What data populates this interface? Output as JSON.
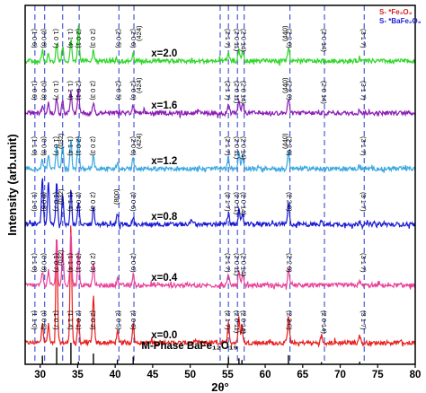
{
  "chart_data": {
    "type": "line",
    "xlabel": "2θ°",
    "ylabel": "Intensity (arb.unit)",
    "xlim": [
      28,
      80
    ],
    "x_ticks": [
      30,
      35,
      40,
      45,
      50,
      55,
      60,
      65,
      70,
      75,
      80
    ],
    "x_tick_labels": [
      "30",
      "35",
      "40",
      "45",
      "50",
      "55",
      "60",
      "65",
      "70",
      "75",
      "80"
    ],
    "legend": [
      {
        "text": "S- *Fe₃O₄",
        "color": "#d42020"
      },
      {
        "text": "S- *BaFe₂O₄",
        "color": "#2020d4"
      }
    ],
    "reference": {
      "label": "M-Phase BaFe₁₂O₁₉",
      "peaks": [
        {
          "x": 30.3,
          "h": 0.4
        },
        {
          "x": 32.2,
          "h": 0.78
        },
        {
          "x": 34.1,
          "h": 1.0
        },
        {
          "x": 35.1,
          "h": 0.12
        },
        {
          "x": 37.1,
          "h": 0.5
        },
        {
          "x": 40.3,
          "h": 0.22
        },
        {
          "x": 42.4,
          "h": 0.35
        },
        {
          "x": 55.1,
          "h": 0.32
        },
        {
          "x": 56.5,
          "h": 0.28
        },
        {
          "x": 56.9,
          "h": 0.2
        },
        {
          "x": 63.1,
          "h": 0.42
        },
        {
          "x": 67.5,
          "h": 0.1
        },
        {
          "x": 72.6,
          "h": 0.12
        }
      ]
    },
    "dashed_lines_x": [
      29.3,
      30.6,
      33.0,
      35.2,
      40.5,
      42.5,
      54.0,
      55.1,
      56.3,
      57.2,
      63.3,
      67.9,
      73.2
    ],
    "series": [
      {
        "name": "x=0.0",
        "color": "#e8201f",
        "base": 0.06,
        "label": "x=0.0",
        "peaks": [
          [
            30.3,
            0.06
          ],
          [
            31.1,
            0.05
          ],
          [
            32.2,
            0.3
          ],
          [
            34.1,
            0.33
          ],
          [
            35.1,
            0.07
          ],
          [
            37.1,
            0.13
          ],
          [
            40.3,
            0.03
          ],
          [
            42.4,
            0.05
          ],
          [
            55.1,
            0.06
          ],
          [
            56.5,
            0.07
          ],
          [
            56.9,
            0.05
          ],
          [
            63.1,
            0.08
          ],
          [
            67.5,
            0.02
          ],
          [
            72.6,
            0.02
          ]
        ],
        "annotations": [
          {
            "x": 29.3,
            "text": "(1 1 0)"
          },
          {
            "x": 30.6,
            "text": "(0 0 8)"
          },
          {
            "x": 32.2,
            "text": "(1 0 7)"
          },
          {
            "x": 34.1,
            "text": "(1 1 4)"
          },
          {
            "x": 35.2,
            "text": "(2 0 1)"
          },
          {
            "x": 37.1,
            "text": "(2 0 3)"
          },
          {
            "x": 40.5,
            "text": "(2 0 5)"
          },
          {
            "x": 42.5,
            "text": "(2 0 6)"
          },
          {
            "x": 55.1,
            "text": "(2 1 7)"
          },
          {
            "x": 56.3,
            "text": "(2 0 11)"
          },
          {
            "x": 57.2,
            "text": "(2 0 14)"
          },
          {
            "x": 63.3,
            "text": "(2 2 0)"
          },
          {
            "x": 67.9,
            "text": "(2 0 14)"
          },
          {
            "x": 73.2,
            "text": "(3 1 7)"
          }
        ]
      },
      {
        "name": "x=0.4",
        "color": "#e8439a",
        "base": 0.22,
        "label": "x=0.4",
        "peaks": [
          [
            30.3,
            0.04
          ],
          [
            31.1,
            0.04
          ],
          [
            32.2,
            0.13
          ],
          [
            33.0,
            0.1
          ],
          [
            34.1,
            0.15
          ],
          [
            35.1,
            0.1
          ],
          [
            37.1,
            0.06
          ],
          [
            40.3,
            0.02
          ],
          [
            42.4,
            0.03
          ],
          [
            55.1,
            0.03
          ],
          [
            56.5,
            0.04
          ],
          [
            57.0,
            0.03
          ],
          [
            63.1,
            0.05
          ],
          [
            72.6,
            0.01
          ]
        ],
        "annotations": [
          {
            "x": 29.3,
            "text": "(1 1 0)"
          },
          {
            "x": 30.6,
            "text": "(0 0 8)"
          },
          {
            "x": 32.2,
            "text": "(1 0 7)"
          },
          {
            "x": 34.1,
            "text": "(1 1 4)"
          },
          {
            "x": 35.2,
            "text": "(2 0 1)"
          },
          {
            "x": 37.1,
            "text": "(2 0 3)"
          },
          {
            "x": 42.5,
            "text": "(2 0 6)"
          },
          {
            "x": 55.1,
            "text": "(2 1 7)"
          },
          {
            "x": 56.3,
            "text": "(2 0 11)"
          },
          {
            "x": 57.2,
            "text": "(2 0 14)"
          },
          {
            "x": 63.3,
            "text": "(2 2 0)"
          },
          {
            "x": 73.2,
            "text": "(3 1 7)"
          }
        ]
      },
      {
        "name": "x=0.8",
        "color": "#1a1ad2",
        "base": 0.39,
        "label": "x=0.8",
        "peaks": [
          [
            30.3,
            0.13
          ],
          [
            31.1,
            0.12
          ],
          [
            32.2,
            0.12
          ],
          [
            33.0,
            0.08
          ],
          [
            34.1,
            0.1
          ],
          [
            35.1,
            0.06
          ],
          [
            37.1,
            0.05
          ],
          [
            40.3,
            0.03
          ],
          [
            42.4,
            0.02
          ],
          [
            50.2,
            0.015
          ],
          [
            55.1,
            0.03
          ],
          [
            56.5,
            0.04
          ],
          [
            57.0,
            0.03
          ],
          [
            63.1,
            0.06
          ],
          [
            67.5,
            0.01
          ],
          [
            72.6,
            0.01
          ]
        ],
        "annotations": [
          {
            "x": 29.3,
            "text": "(1 1 0)"
          },
          {
            "x": 30.6,
            "text": "(0 0 8)"
          },
          {
            "x": 32.2,
            "text": "(1 0 7)"
          },
          {
            "x": 34.1,
            "text": "(1 1 4)"
          },
          {
            "x": 35.2,
            "text": "(2 0 1)"
          },
          {
            "x": 37.1,
            "text": "(2 0 3)"
          },
          {
            "x": 42.5,
            "text": "(2 0 6)"
          },
          {
            "x": 55.1,
            "text": "(2 1 7)"
          },
          {
            "x": 56.3,
            "text": "(2 0 11)"
          },
          {
            "x": 57.2,
            "text": "(2 0 14)"
          },
          {
            "x": 63.3,
            "text": "(2 2 0)"
          },
          {
            "x": 73.2,
            "text": "(3 1 7)"
          }
        ]
      },
      {
        "name": "x=1.2",
        "color": "#3aa8e0",
        "base": 0.545,
        "label": "x=1.2",
        "peaks": [
          [
            30.3,
            0.03
          ],
          [
            31.1,
            0.04
          ],
          [
            32.2,
            0.06
          ],
          [
            33.0,
            0.07
          ],
          [
            34.1,
            0.08
          ],
          [
            35.1,
            0.09
          ],
          [
            37.1,
            0.04
          ],
          [
            40.3,
            0.02
          ],
          [
            42.4,
            0.03
          ],
          [
            55.1,
            0.03
          ],
          [
            56.5,
            0.05
          ],
          [
            57.0,
            0.04
          ],
          [
            63.1,
            0.05
          ],
          [
            72.6,
            0.01
          ]
        ],
        "annotations": [
          {
            "x": 29.3,
            "text": "(1 1 0)"
          },
          {
            "x": 30.6,
            "text": "(0 0 8)"
          },
          {
            "x": 32.2,
            "text": "(1 0 7)"
          },
          {
            "x": 34.1,
            "text": "(1 1 4)"
          },
          {
            "x": 35.2,
            "text": "(2 0 1)"
          },
          {
            "x": 37.1,
            "text": "(2 0 3)"
          },
          {
            "x": 42.5,
            "text": "(2 0 6)"
          },
          {
            "x": 55.1,
            "text": "(2 1 7)"
          },
          {
            "x": 56.3,
            "text": "(2 0 11)"
          },
          {
            "x": 57.2,
            "text": "(2 0 14)"
          },
          {
            "x": 63.3,
            "text": "(2 2 0)"
          },
          {
            "x": 73.2,
            "text": "(3 1 7)"
          }
        ]
      },
      {
        "name": "x=1.6",
        "color": "#8b1fb5",
        "base": 0.7,
        "label": "x=1.6",
        "peaks": [
          [
            30.3,
            0.02
          ],
          [
            31.1,
            0.03
          ],
          [
            32.2,
            0.04
          ],
          [
            33.0,
            0.04
          ],
          [
            34.1,
            0.06
          ],
          [
            35.1,
            0.07
          ],
          [
            37.1,
            0.03
          ],
          [
            42.4,
            0.02
          ],
          [
            55.1,
            0.02
          ],
          [
            56.5,
            0.03
          ],
          [
            57.0,
            0.03
          ],
          [
            63.1,
            0.04
          ],
          [
            72.6,
            0.01
          ]
        ],
        "annotations": [
          {
            "x": 29.3,
            "text": "(1 0 6)"
          },
          {
            "x": 30.6,
            "text": "(0 0 8)"
          },
          {
            "x": 32.2,
            "text": "(1 0 7)"
          },
          {
            "x": 34.1,
            "text": "(1 1 4)"
          },
          {
            "x": 35.2,
            "text": "(2 0 1)"
          },
          {
            "x": 37.1,
            "text": "(2 0 3)"
          },
          {
            "x": 40.5,
            "text": "(2 0 5)"
          },
          {
            "x": 42.5,
            "text": "(2 0 6)"
          },
          {
            "x": 55.1,
            "text": "(2 1 7)"
          },
          {
            "x": 56.3,
            "text": "(2 0 11)"
          },
          {
            "x": 57.2,
            "text": "(2 0 14)"
          },
          {
            "x": 63.3,
            "text": "(2 2 0)"
          },
          {
            "x": 67.9,
            "text": "(2 0 14)"
          },
          {
            "x": 73.2,
            "text": "(3 1 7)"
          }
        ]
      },
      {
        "name": "x=2.0",
        "color": "#2fd62a",
        "base": 0.845,
        "label": "x=2.0",
        "peaks": [
          [
            30.3,
            0.03
          ],
          [
            31.1,
            0.02
          ],
          [
            32.2,
            0.05
          ],
          [
            33.0,
            0.04
          ],
          [
            34.1,
            0.06
          ],
          [
            35.1,
            0.1
          ],
          [
            37.1,
            0.03
          ],
          [
            42.4,
            0.02
          ],
          [
            55.1,
            0.02
          ],
          [
            56.5,
            0.03
          ],
          [
            57.0,
            0.03
          ],
          [
            63.1,
            0.04
          ],
          [
            72.6,
            0.01
          ]
        ],
        "annotations": [
          {
            "x": 29.3,
            "text": "(1 0 6)"
          },
          {
            "x": 30.6,
            "text": "(0 0 8)"
          },
          {
            "x": 32.2,
            "text": "(1 0 7)"
          },
          {
            "x": 34.1,
            "text": "(1 1 4)"
          },
          {
            "x": 35.2,
            "text": "(2 0 1)"
          },
          {
            "x": 37.1,
            "text": "(2 0 3)"
          },
          {
            "x": 40.5,
            "text": "(2 0 5)"
          },
          {
            "x": 42.5,
            "text": "(2 0 6)"
          },
          {
            "x": 55.1,
            "text": "(2 1 7)"
          },
          {
            "x": 56.3,
            "text": "(2 0 11)"
          },
          {
            "x": 57.2,
            "text": "(2 0 14)"
          },
          {
            "x": 63.3,
            "text": "(2 2 0)"
          },
          {
            "x": 67.9,
            "text": "(2 0 14)"
          },
          {
            "x": 73.2,
            "text": "(3 1 7)"
          }
        ]
      }
    ],
    "secondary_markers": [
      {
        "series": "x=2.0",
        "x": 43.8,
        "text": "(424)",
        "color": "#2020d4"
      },
      {
        "series": "x=2.0",
        "x": 63.3,
        "text": "(440)",
        "color": "#d42020"
      },
      {
        "series": "x=1.6",
        "x": 43.8,
        "text": "(424)",
        "color": "#2020d4"
      },
      {
        "series": "x=1.6",
        "x": 63.3,
        "text": "(440)",
        "color": "#d42020"
      },
      {
        "series": "x=1.2",
        "x": 43.8,
        "text": "(424)",
        "color": "#2020d4"
      },
      {
        "series": "x=1.2",
        "x": 63.3,
        "text": "(440)",
        "color": "#d42020"
      },
      {
        "series": "x=1.2",
        "x": 33.4,
        "text": "(032)",
        "color": "#2020d4"
      },
      {
        "series": "x=0.8",
        "x": 33.4,
        "text": "(032)",
        "color": "#2020d4"
      },
      {
        "series": "x=0.8",
        "x": 40.8,
        "text": "(800)",
        "color": "#2020d4"
      },
      {
        "series": "x=0.4",
        "x": 33.4,
        "text": "(032)",
        "color": "#2020d4"
      }
    ]
  }
}
